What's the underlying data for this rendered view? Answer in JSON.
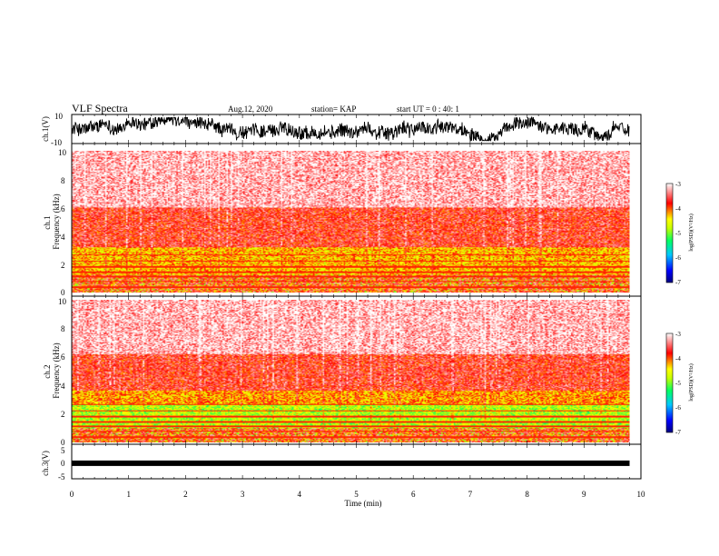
{
  "header": {
    "title": "VLF Spectra",
    "date": "Aug.12, 2020",
    "station": "station= KAP",
    "start": "start UT =   0 : 40: 1"
  },
  "chart_data": [
    {
      "type": "line",
      "panel": "ch1-waveform",
      "ylabel": "ch.1(V)",
      "ylim": [
        -10,
        10
      ],
      "y_ticks": [
        "10",
        "-10"
      ],
      "xlim": [
        0,
        10
      ],
      "data_xmax": 9.8
    },
    {
      "type": "heatmap",
      "panel": "ch1-spectrogram",
      "ylabel": "ch.1\nFrequency (kHz)",
      "ylim": [
        0,
        10
      ],
      "y_ticks": [
        "0",
        "2",
        "4",
        "6",
        "8",
        "10"
      ],
      "xlim": [
        0,
        10
      ],
      "data_xmax": 9.8,
      "colorbar": {
        "label": "log(PSD)(V²/Hz)",
        "range": [
          -7,
          -3
        ],
        "ticks": [
          "-3",
          "-4",
          "-5",
          "-6",
          "-7"
        ]
      },
      "bands_khz": [
        {
          "from": 0.0,
          "to": 1.2,
          "level": "mixed"
        },
        {
          "from": 1.2,
          "to": 3.2,
          "level": "-4.3"
        },
        {
          "from": 3.2,
          "to": 6.0,
          "level": "-3.7"
        },
        {
          "from": 6.0,
          "to": 10.0,
          "level": "-3.2"
        }
      ]
    },
    {
      "type": "heatmap",
      "panel": "ch2-spectrogram",
      "ylabel": "ch.2\nFrequency (kHz)",
      "ylim": [
        0,
        10
      ],
      "y_ticks": [
        "0",
        "2",
        "4",
        "6",
        "8",
        "10"
      ],
      "xlim": [
        0,
        10
      ],
      "data_xmax": 9.8,
      "colorbar": {
        "label": "log(PSD)(V²/Hz)",
        "range": [
          -7,
          -3
        ],
        "ticks": [
          "-3",
          "-4",
          "-5",
          "-6",
          "-7"
        ]
      },
      "bands_khz": [
        {
          "from": 0.0,
          "to": 1.0,
          "level": "mixed"
        },
        {
          "from": 1.0,
          "to": 2.6,
          "level": "-4.8"
        },
        {
          "from": 2.6,
          "to": 3.6,
          "level": "-4.2"
        },
        {
          "from": 3.6,
          "to": 6.2,
          "level": "-3.7"
        },
        {
          "from": 6.2,
          "to": 10.0,
          "level": "-3.2"
        }
      ]
    },
    {
      "type": "line",
      "panel": "ch3-waveform",
      "ylabel": "ch.3(V)",
      "ylim": [
        -5,
        5
      ],
      "y_ticks": [
        "5",
        "0",
        "-5"
      ],
      "xlim": [
        0,
        10
      ],
      "data_xmax": 9.8,
      "level": -0.5
    }
  ],
  "xaxis": {
    "label": "Time (min)",
    "ticks": [
      "0",
      "1",
      "2",
      "3",
      "4",
      "5",
      "6",
      "7",
      "8",
      "9",
      "10"
    ]
  },
  "colors": {
    "axis": "#000000",
    "colormap": [
      "#000080",
      "#0000ff",
      "#00c8ff",
      "#00ff64",
      "#c8ff00",
      "#ffff00",
      "#ff8000",
      "#ff0000",
      "#ffffff"
    ]
  }
}
